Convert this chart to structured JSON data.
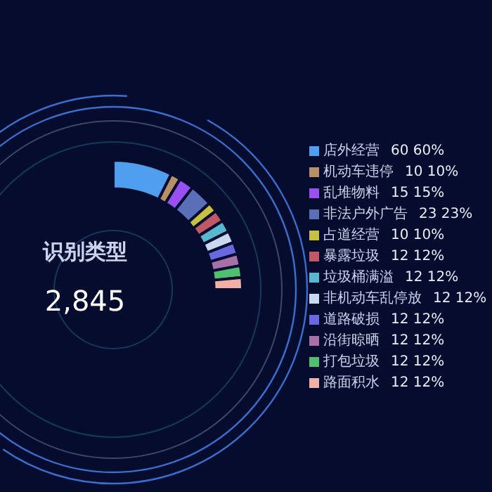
{
  "chart_data": {
    "type": "donut",
    "title": "识别类型",
    "annotations": [
      "2,845"
    ],
    "categories": [
      "店外经营",
      "机动车违停",
      "乱堆物料",
      "非法户外广告",
      "占道经营",
      "暴露垃圾",
      "垃圾桶满溢",
      "非机动车乱停放",
      "道路破损",
      "沿街晾晒",
      "打包垃圾",
      "路面积水"
    ],
    "values": [
      60,
      10,
      15,
      23,
      10,
      12,
      12,
      12,
      12,
      12,
      12,
      12
    ],
    "value_labels": [
      "60 60%",
      "10 10%",
      "15 15%",
      "23 23%",
      "10 10%",
      "12 12%",
      "12 12%",
      "12 12%",
      "12 12%",
      "12 12%",
      "12 12%",
      "12 12%"
    ],
    "colors": [
      "#4f9ef0",
      "#b89068",
      "#9a4ff0",
      "#5a6fb8",
      "#c8c040",
      "#c05868",
      "#58b8d0",
      "#c8d8f0",
      "#6868e0",
      "#a870a8",
      "#50c070",
      "#f0b0a8"
    ],
    "legend": "right"
  }
}
